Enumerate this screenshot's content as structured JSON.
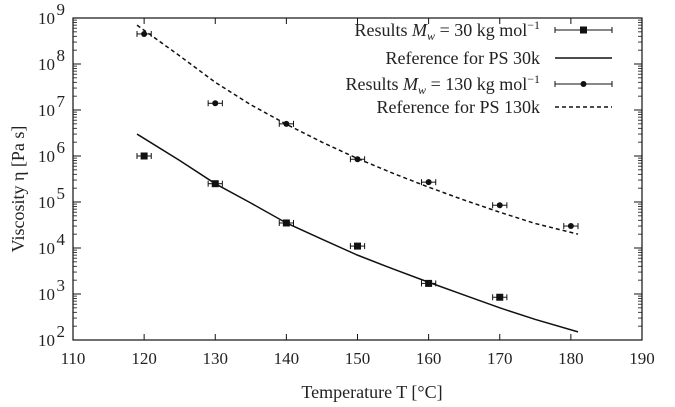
{
  "chart_data": {
    "type": "scatter",
    "xlabel": "Temperature T [°C]",
    "ylabel": "Viscosity η [Pa s]",
    "x_ticks": [
      "110",
      "120",
      "130",
      "140",
      "150",
      "160",
      "170",
      "180",
      "190"
    ],
    "y_ticks": [
      {
        "base": "10",
        "exp": "2"
      },
      {
        "base": "10",
        "exp": "3"
      },
      {
        "base": "10",
        "exp": "4"
      },
      {
        "base": "10",
        "exp": "5"
      },
      {
        "base": "10",
        "exp": "6"
      },
      {
        "base": "10",
        "exp": "7"
      },
      {
        "base": "10",
        "exp": "8"
      },
      {
        "base": "10",
        "exp": "9"
      }
    ],
    "xlim": [
      110,
      190
    ],
    "ylim": [
      100,
      1000000000
    ],
    "y_scale": "log",
    "grid": false,
    "legend_position": "top-right",
    "x_error": 1,
    "series": [
      {
        "name": "Results M_w = 30 kg mol^-1",
        "legend_label": {
          "prefix": "Results ",
          "var": "M",
          "sub": "w",
          "mid": " = 30 kg mol",
          "sup": "−1"
        },
        "kind": "points",
        "marker": "square",
        "color": "#111111",
        "x": [
          120,
          130,
          140,
          150,
          160,
          170
        ],
        "y": [
          1000000,
          250000,
          35000,
          11000,
          1700,
          850
        ]
      },
      {
        "name": "Reference for PS 30k",
        "kind": "line",
        "style": "solid",
        "color": "#111111",
        "x": [
          119,
          125,
          130,
          135,
          140,
          145,
          150,
          155,
          160,
          165,
          170,
          175,
          181
        ],
        "y": [
          3000000,
          800000,
          250000,
          95000,
          35000,
          15500,
          7000,
          3500,
          1800,
          950,
          500,
          280,
          150
        ]
      },
      {
        "name": "Results M_w = 130 kg mol^-1",
        "legend_label": {
          "prefix": "Results ",
          "var": "M",
          "sub": "w",
          "mid": " = 130 kg mol",
          "sup": "−1"
        },
        "kind": "points",
        "marker": "circle",
        "color": "#111111",
        "x": [
          120,
          130,
          140,
          150,
          160,
          170,
          180
        ],
        "y": [
          450000000,
          14000000,
          5000000,
          850000,
          270000,
          85000,
          30000
        ]
      },
      {
        "name": "Reference for PS 130k",
        "kind": "line",
        "style": "dashed",
        "color": "#111111",
        "x": [
          119,
          125,
          130,
          135,
          140,
          145,
          150,
          155,
          160,
          165,
          170,
          175,
          181
        ],
        "y": [
          700000000,
          150000000,
          40000000,
          13000000,
          4900000,
          2000000,
          880000,
          420000,
          210000,
          110000,
          60000,
          34000,
          20000
        ]
      }
    ]
  }
}
